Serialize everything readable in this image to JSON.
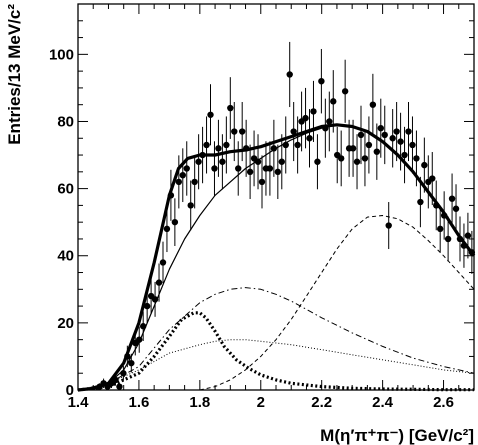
{
  "chart_data": {
    "type": "scatter",
    "title": "",
    "xlabel": "M(η′π⁺π⁻) [GeV/c²]",
    "ylabel": "Entries/13 MeV/c²",
    "xlim": [
      1.4,
      2.7
    ],
    "ylim": [
      0,
      115
    ],
    "x_ticks": [
      1.4,
      1.6,
      1.8,
      2.0,
      2.2,
      2.4,
      2.6
    ],
    "x_tick_labels": [
      "1.4",
      "1.6",
      "1.8",
      "2",
      "2.2",
      "2.4",
      "2.6"
    ],
    "y_ticks": [
      0,
      20,
      40,
      60,
      80,
      100
    ],
    "y_tick_labels": [
      "0",
      "20",
      "40",
      "60",
      "80",
      "100"
    ],
    "grid": false,
    "series": [
      {
        "style": "points-with-errors",
        "color": "#000000",
        "x": [
          1.471,
          1.484,
          1.497,
          1.51,
          1.523,
          1.536,
          1.549,
          1.562,
          1.575,
          1.588,
          1.601,
          1.614,
          1.627,
          1.64,
          1.653,
          1.666,
          1.679,
          1.692,
          1.705,
          1.718,
          1.731,
          1.744,
          1.757,
          1.77,
          1.783,
          1.796,
          1.809,
          1.822,
          1.835,
          1.848,
          1.861,
          1.874,
          1.887,
          1.9,
          1.913,
          1.926,
          1.939,
          1.952,
          1.965,
          1.978,
          1.991,
          2.004,
          2.017,
          2.03,
          2.043,
          2.056,
          2.069,
          2.082,
          2.095,
          2.108,
          2.121,
          2.134,
          2.147,
          2.16,
          2.173,
          2.186,
          2.199,
          2.212,
          2.225,
          2.238,
          2.251,
          2.264,
          2.277,
          2.29,
          2.303,
          2.316,
          2.329,
          2.342,
          2.355,
          2.368,
          2.381,
          2.394,
          2.407,
          2.42,
          2.433,
          2.446,
          2.459,
          2.472,
          2.485,
          2.498,
          2.511,
          2.524,
          2.537,
          2.55,
          2.563,
          2.576,
          2.589,
          2.602,
          2.615,
          2.628,
          2.641,
          2.654,
          2.667,
          2.68,
          2.693
        ],
        "y": [
          1,
          2,
          1,
          2,
          3,
          1,
          5,
          10,
          8,
          14,
          15,
          19,
          25,
          28,
          27,
          32,
          38,
          48,
          58,
          50,
          62,
          64,
          66,
          55,
          62,
          68,
          70,
          73,
          82,
          66,
          72,
          68,
          73,
          84,
          77,
          66,
          77,
          72,
          65,
          69,
          68,
          62,
          66,
          66,
          72,
          65,
          68,
          73,
          94,
          77,
          73,
          80,
          81,
          75,
          83,
          68,
          92,
          78,
          80,
          86,
          70,
          69,
          89,
          72,
          72,
          68,
          76,
          69,
          73,
          85,
          71,
          78,
          76,
          49,
          75,
          77,
          74,
          70,
          77,
          73,
          69,
          56,
          67,
          62,
          63,
          55,
          48,
          52,
          45,
          57,
          54,
          45,
          43,
          46,
          41
        ],
        "yerr": [
          1,
          1.4,
          1,
          1.4,
          1.7,
          1,
          2.2,
          3.2,
          2.8,
          3.7,
          3.9,
          4.4,
          5,
          5.3,
          5.2,
          5.7,
          6.2,
          6.9,
          7.6,
          7.1,
          7.9,
          8,
          8.1,
          7.4,
          7.9,
          8.2,
          8.4,
          8.5,
          9.1,
          8.1,
          8.5,
          8.2,
          8.5,
          9.2,
          8.8,
          8.1,
          8.8,
          8.5,
          8.1,
          8.3,
          8.2,
          7.9,
          8.1,
          8.1,
          8.5,
          8.1,
          8.2,
          8.5,
          9.7,
          8.8,
          8.5,
          8.9,
          9,
          8.7,
          9.1,
          8.2,
          9.6,
          8.8,
          8.9,
          9.3,
          8.4,
          8.3,
          9.4,
          8.5,
          8.5,
          8.2,
          8.7,
          8.3,
          8.5,
          9.2,
          8.4,
          8.8,
          8.7,
          7,
          8.7,
          8.8,
          8.6,
          8.4,
          8.8,
          8.5,
          8.3,
          7.5,
          8.2,
          7.9,
          7.9,
          7.4,
          6.9,
          7.2,
          6.7,
          7.5,
          7.3,
          6.7,
          6.6,
          6.8,
          6.4
        ]
      },
      {
        "style": "thick-solid",
        "color": "#000000",
        "x": [
          1.4,
          1.45,
          1.5,
          1.55,
          1.6,
          1.65,
          1.7,
          1.73,
          1.76,
          1.8,
          1.85,
          1.9,
          1.95,
          2.0,
          2.05,
          2.1,
          2.15,
          2.2,
          2.25,
          2.3,
          2.35,
          2.4,
          2.45,
          2.5,
          2.55,
          2.6,
          2.65,
          2.7
        ],
        "y": [
          0,
          0.5,
          2,
          8,
          20,
          38,
          58,
          66,
          69,
          70,
          70,
          71,
          71.5,
          72.5,
          74,
          75.5,
          77,
          78.5,
          79,
          78.5,
          77,
          74,
          70,
          65,
          59,
          53,
          46,
          40
        ]
      },
      {
        "style": "thin-solid",
        "color": "#000000",
        "x": [
          1.4,
          1.45,
          1.5,
          1.55,
          1.6,
          1.65,
          1.7,
          1.75,
          1.8,
          1.85,
          1.9,
          1.95,
          2.0,
          2.05,
          2.1,
          2.15,
          2.2,
          2.25,
          2.3,
          2.35,
          2.4,
          2.45,
          2.5,
          2.55,
          2.6,
          2.65,
          2.7
        ],
        "y": [
          0,
          0.5,
          2,
          6,
          14,
          25,
          36,
          45,
          52,
          58,
          62,
          66,
          69,
          72,
          74.5,
          76.5,
          78,
          79,
          78.5,
          77,
          74,
          70,
          65,
          59,
          53,
          46,
          40
        ]
      },
      {
        "style": "thick-dotted",
        "color": "#000000",
        "x": [
          1.4,
          1.5,
          1.6,
          1.65,
          1.7,
          1.74,
          1.78,
          1.8,
          1.82,
          1.85,
          1.88,
          1.92,
          1.96,
          2.0,
          2.05,
          2.1,
          2.2,
          2.3,
          2.4,
          2.5,
          2.6,
          2.7
        ],
        "y": [
          0,
          1,
          5,
          10,
          16,
          21,
          23,
          23,
          21.5,
          17.5,
          13,
          9,
          6.5,
          4.5,
          3,
          2,
          1,
          0.5,
          0.3,
          0.2,
          0.1,
          0.1
        ]
      },
      {
        "style": "dash-dot",
        "color": "#000000",
        "x": [
          1.4,
          1.5,
          1.6,
          1.7,
          1.75,
          1.8,
          1.85,
          1.9,
          1.95,
          2.0,
          2.05,
          2.1,
          2.15,
          2.2,
          2.3,
          2.4,
          2.5,
          2.6,
          2.7
        ],
        "y": [
          0,
          2,
          7,
          18,
          22,
          26,
          28.5,
          30,
          30.5,
          30,
          28.5,
          26.5,
          24,
          21.5,
          17,
          13,
          9.5,
          7,
          5
        ]
      },
      {
        "style": "fine-dotted",
        "color": "#000000",
        "x": [
          1.4,
          1.5,
          1.6,
          1.7,
          1.8,
          1.85,
          1.9,
          1.95,
          2.0,
          2.05,
          2.1,
          2.2,
          2.3,
          2.4,
          2.5,
          2.6,
          2.7
        ],
        "y": [
          0,
          2,
          6,
          11,
          13.5,
          14.5,
          15,
          15,
          14.5,
          14,
          13.5,
          12,
          10.5,
          9,
          7.5,
          6,
          5
        ]
      },
      {
        "style": "dashed",
        "color": "#000000",
        "x": [
          1.8,
          1.85,
          1.9,
          1.95,
          2.0,
          2.05,
          2.1,
          2.15,
          2.2,
          2.25,
          2.3,
          2.35,
          2.4,
          2.45,
          2.5,
          2.55,
          2.6,
          2.65,
          2.7
        ],
        "y": [
          0,
          1,
          3,
          6,
          10,
          15,
          21,
          28,
          35,
          42,
          48,
          51.5,
          52,
          51,
          48.5,
          44.5,
          40,
          35,
          30
        ]
      }
    ]
  }
}
